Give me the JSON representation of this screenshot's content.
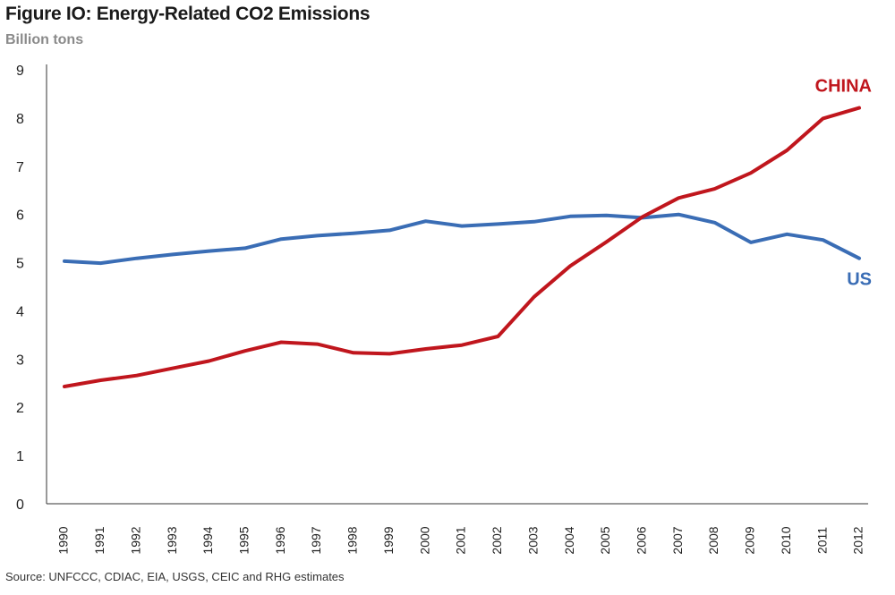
{
  "header": {
    "title": "Figure IO: Energy-Related CO2 Emissions",
    "subtitle": "Billion tons"
  },
  "footer": {
    "source": "Source: UNFCCC, CDIAC, EIA, USGS, CEIC and RHG estimates"
  },
  "chart_data": {
    "type": "line",
    "title": "Figure IO: Energy-Related CO2 Emissions",
    "ylabel": "Billion tons",
    "xlabel": "",
    "ylim": [
      0,
      9
    ],
    "yticks": [
      0,
      1,
      2,
      3,
      4,
      5,
      6,
      7,
      8,
      9
    ],
    "grid": false,
    "legend": "direct labels at line ends",
    "categories": [
      "1990",
      "1991",
      "1992",
      "1993",
      "1994",
      "1995",
      "1996",
      "1997",
      "1998",
      "1999",
      "2000",
      "2001",
      "2002",
      "2003",
      "2004",
      "2005",
      "2006",
      "2007",
      "2008",
      "2009",
      "2010",
      "2011",
      "2012"
    ],
    "series": [
      {
        "name": "US",
        "color": "#3a6db5",
        "values": [
          5.03,
          4.99,
          5.09,
          5.17,
          5.24,
          5.3,
          5.49,
          5.56,
          5.61,
          5.67,
          5.86,
          5.76,
          5.8,
          5.85,
          5.96,
          5.98,
          5.93,
          6.0,
          5.83,
          5.42,
          5.59,
          5.47,
          5.09
        ]
      },
      {
        "name": "CHINA",
        "color": "#c0161d",
        "values": [
          2.43,
          2.56,
          2.66,
          2.81,
          2.96,
          3.17,
          3.35,
          3.31,
          3.13,
          3.11,
          3.21,
          3.29,
          3.47,
          4.29,
          4.93,
          5.43,
          5.95,
          6.34,
          6.53,
          6.86,
          7.33,
          7.99,
          8.21
        ]
      }
    ]
  }
}
